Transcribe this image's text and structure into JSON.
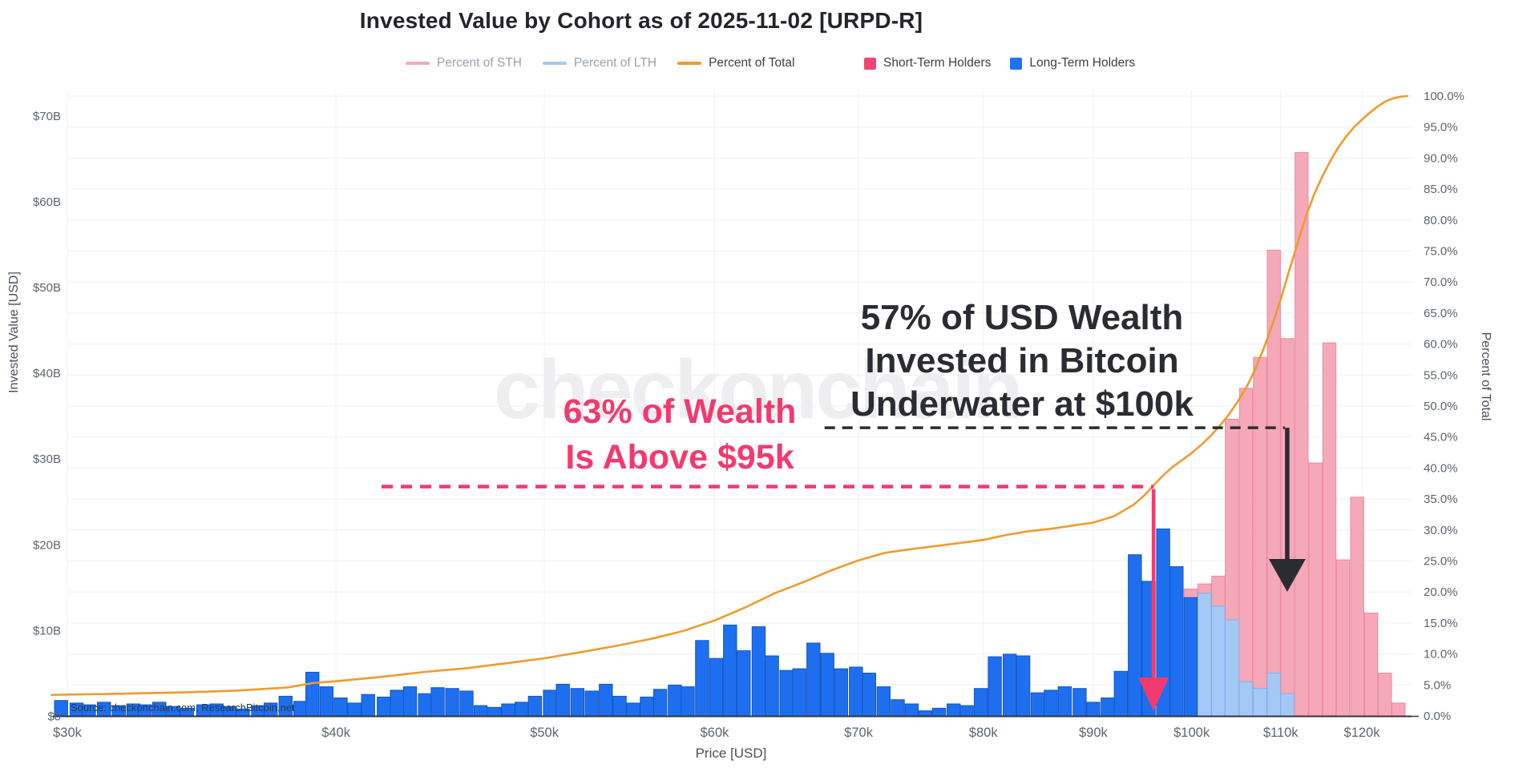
{
  "title": "Invested Value by Cohort as of 2025-11-02 [URPD-R]",
  "legend": {
    "lines": [
      {
        "label": "Percent of STH",
        "color": "#f2a9bb",
        "muted": true
      },
      {
        "label": "Percent of LTH",
        "color": "#a9c9f3",
        "muted": true
      },
      {
        "label": "Percent of Total",
        "color": "#ef9b2d",
        "muted": false
      }
    ],
    "bars": [
      {
        "label": "Short-Term Holders",
        "color": "#f0476e"
      },
      {
        "label": "Long-Term Holders",
        "color": "#1e72f0"
      }
    ]
  },
  "axes": {
    "left": {
      "title": "Invested Value [USD]",
      "ticks": [
        {
          "label": "$70B",
          "value": 70
        },
        {
          "label": "$60B",
          "value": 60
        },
        {
          "label": "$50B",
          "value": 50
        },
        {
          "label": "$40B",
          "value": 40
        },
        {
          "label": "$30B",
          "value": 30
        },
        {
          "label": "$20B",
          "value": 20
        },
        {
          "label": "$10B",
          "value": 10
        },
        {
          "label": "$0",
          "value": 0
        }
      ]
    },
    "right": {
      "title": "Percent of Total",
      "ticks": [
        {
          "label": "100.0%",
          "value": 100
        },
        {
          "label": "95.0%",
          "value": 95
        },
        {
          "label": "90.0%",
          "value": 90
        },
        {
          "label": "85.0%",
          "value": 85
        },
        {
          "label": "80.0%",
          "value": 80
        },
        {
          "label": "75.0%",
          "value": 75
        },
        {
          "label": "70.0%",
          "value": 70
        },
        {
          "label": "65.0%",
          "value": 65
        },
        {
          "label": "60.0%",
          "value": 60
        },
        {
          "label": "55.0%",
          "value": 55
        },
        {
          "label": "50.0%",
          "value": 50
        },
        {
          "label": "45.0%",
          "value": 45
        },
        {
          "label": "40.0%",
          "value": 40
        },
        {
          "label": "35.0%",
          "value": 35
        },
        {
          "label": "30.0%",
          "value": 30
        },
        {
          "label": "25.0%",
          "value": 25
        },
        {
          "label": "20.0%",
          "value": 20
        },
        {
          "label": "15.0%",
          "value": 15
        },
        {
          "label": "10.0%",
          "value": 10
        },
        {
          "label": "5.0%",
          "value": 5
        },
        {
          "label": "0.0%",
          "value": 0
        }
      ]
    },
    "x": {
      "title": "Price [USD]",
      "ticks": [
        {
          "label": "$30k",
          "value": 30
        },
        {
          "label": "$40k",
          "value": 40
        },
        {
          "label": "$50k",
          "value": 50
        },
        {
          "label": "$60k",
          "value": 60
        },
        {
          "label": "$70k",
          "value": 70
        },
        {
          "label": "$80k",
          "value": 80
        },
        {
          "label": "$90k",
          "value": 90
        },
        {
          "label": "$100k",
          "value": 100
        },
        {
          "label": "$110k",
          "value": 110
        },
        {
          "label": "$120k",
          "value": 120
        }
      ]
    }
  },
  "annotations": {
    "pink": {
      "line1": "63% of Wealth",
      "line2": "Is Above $95k",
      "color": "#f23a6e",
      "level_pct": 37,
      "dash_from_k": 42,
      "arrow_price_k": 96
    },
    "black": {
      "line1": "57% of USD Wealth",
      "line2": "Invested in Bitcoin",
      "line3": "Underwater at $100k",
      "color": "#2b2c32",
      "level_pct": 46.5,
      "dash_from_k": 67.5,
      "arrow_price_k": 110.5
    }
  },
  "watermark": "checkonchain",
  "source": "Source: checkonchain.com, ResearchBitcoin.net",
  "chart_data": {
    "type": "bar+line",
    "x_scale": "log",
    "title": "Invested Value by Cohort as of 2025-11-02 [URPD-R]",
    "xlabel": "Price [USD]",
    "ylabel_left": "Invested Value [USD]",
    "ylabel_right": "Percent of Total",
    "y_left_range_billion": [
      0,
      70
    ],
    "y_right_range_pct": [
      0,
      100
    ],
    "x_range_k": [
      29.5,
      126.5
    ],
    "prices_k": [
      29.8,
      30.3,
      30.7,
      31.2,
      31.7,
      32.2,
      32.6,
      33.1,
      33.6,
      34.1,
      34.7,
      35.2,
      35.7,
      36.2,
      36.8,
      37.3,
      37.9,
      38.5,
      39.0,
      39.6,
      40.2,
      40.8,
      41.4,
      42.1,
      42.7,
      43.3,
      44.0,
      44.6,
      45.3,
      46.0,
      46.7,
      47.4,
      48.1,
      48.8,
      49.5,
      50.3,
      51.0,
      51.8,
      52.6,
      53.4,
      54.2,
      55.0,
      55.8,
      56.6,
      57.5,
      58.3,
      59.2,
      60.1,
      61.0,
      61.9,
      62.9,
      63.8,
      64.8,
      65.7,
      66.7,
      67.7,
      68.7,
      69.8,
      70.8,
      71.9,
      73.0,
      74.1,
      75.2,
      76.3,
      77.5,
      78.6,
      79.8,
      81.0,
      82.3,
      83.5,
      84.8,
      86.0,
      87.3,
      88.7,
      90.0,
      91.4,
      92.7,
      94.1,
      95.5,
      97.0,
      98.4,
      99.9,
      101.4,
      102.9,
      104.4,
      106.0,
      107.6,
      109.2,
      110.8,
      112.5,
      114.2,
      115.9,
      117.6,
      119.4,
      121.2,
      123.0,
      124.8
    ],
    "lth_billion": [
      1.8,
      1.5,
      1.3,
      1.6,
      1.2,
      1.4,
      1.3,
      1.6,
      1.1,
      0.9,
      1.3,
      1.4,
      1.1,
      0.8,
      1.2,
      1.5,
      2.3,
      1.7,
      5.1,
      3.4,
      2.1,
      1.5,
      2.5,
      2.2,
      3.0,
      3.4,
      2.6,
      3.3,
      3.2,
      2.9,
      1.2,
      1.0,
      1.4,
      1.6,
      2.3,
      3.0,
      3.7,
      3.2,
      2.9,
      3.7,
      2.3,
      1.5,
      2.2,
      3.1,
      3.6,
      3.4,
      8.8,
      6.7,
      10.6,
      7.6,
      10.4,
      7.0,
      5.3,
      5.5,
      8.5,
      7.3,
      5.5,
      5.7,
      5.0,
      3.4,
      1.9,
      1.4,
      0.6,
      0.9,
      1.4,
      1.2,
      3.2,
      6.9,
      7.2,
      7.0,
      2.7,
      3.0,
      3.4,
      3.2,
      1.6,
      2.1,
      5.2,
      18.8,
      15.7,
      21.8,
      17.4,
      13.8,
      14.3,
      12.8,
      11.2,
      4.0,
      3.2,
      5.0,
      2.6,
      0,
      0,
      0,
      0,
      0,
      0,
      0,
      0
    ],
    "sth_billion": [
      0,
      0,
      0,
      0,
      0,
      0,
      0,
      0,
      0,
      0,
      0,
      0,
      0,
      0,
      0,
      0,
      0,
      0,
      0,
      0,
      0,
      0,
      0,
      0,
      0,
      0,
      0,
      0,
      0,
      0,
      0,
      0,
      0,
      0,
      0,
      0,
      0,
      0,
      0,
      0,
      0,
      0,
      0,
      0,
      0,
      0,
      0,
      0,
      0,
      0,
      0,
      0,
      0,
      0,
      0,
      0,
      0,
      0,
      0,
      0,
      0,
      0,
      0,
      0,
      0,
      0,
      0,
      0,
      0,
      0,
      0,
      0,
      0,
      0,
      0,
      0,
      0,
      0,
      0,
      0,
      0,
      14.8,
      15.4,
      16.3,
      34.6,
      38.2,
      41.8,
      54.3,
      44.0,
      65.7,
      29.5,
      43.5,
      18.2,
      25.5,
      12.0,
      5.0,
      1.5
    ],
    "percent_of_total_line": [
      [
        29.5,
        3.4
      ],
      [
        32,
        3.6
      ],
      [
        34,
        3.8
      ],
      [
        36,
        4.1
      ],
      [
        38,
        4.6
      ],
      [
        39,
        5.3
      ],
      [
        40,
        5.6
      ],
      [
        42,
        6.3
      ],
      [
        44,
        7.1
      ],
      [
        46,
        7.7
      ],
      [
        48,
        8.5
      ],
      [
        50,
        9.3
      ],
      [
        52,
        10.3
      ],
      [
        54,
        11.3
      ],
      [
        56,
        12.4
      ],
      [
        58,
        13.7
      ],
      [
        60,
        15.4
      ],
      [
        62,
        17.5
      ],
      [
        64,
        19.8
      ],
      [
        66,
        21.6
      ],
      [
        68,
        23.5
      ],
      [
        70,
        25.1
      ],
      [
        72,
        26.3
      ],
      [
        74,
        26.9
      ],
      [
        76,
        27.4
      ],
      [
        78,
        27.9
      ],
      [
        80,
        28.4
      ],
      [
        82,
        29.2
      ],
      [
        84,
        29.8
      ],
      [
        86,
        30.2
      ],
      [
        88,
        30.7
      ],
      [
        90,
        31.2
      ],
      [
        92,
        32.2
      ],
      [
        94,
        34.1
      ],
      [
        95,
        35.5
      ],
      [
        96,
        37.2
      ],
      [
        97,
        38.8
      ],
      [
        98,
        40.2
      ],
      [
        99,
        41.3
      ],
      [
        100,
        42.4
      ],
      [
        101,
        43.7
      ],
      [
        102,
        45.1
      ],
      [
        103,
        46.7
      ],
      [
        104,
        48.5
      ],
      [
        105,
        50.6
      ],
      [
        106,
        52.9
      ],
      [
        107,
        55.8
      ],
      [
        108,
        59.2
      ],
      [
        109,
        63.0
      ],
      [
        110,
        67.2
      ],
      [
        111,
        71.8
      ],
      [
        112,
        76.2
      ],
      [
        113,
        80.5
      ],
      [
        114,
        84.1
      ],
      [
        115,
        87.0
      ],
      [
        116,
        89.5
      ],
      [
        117,
        91.7
      ],
      [
        118,
        93.5
      ],
      [
        119,
        95.0
      ],
      [
        120,
        96.2
      ],
      [
        121,
        97.3
      ],
      [
        122,
        98.3
      ],
      [
        123,
        99.1
      ],
      [
        124,
        99.6
      ],
      [
        125,
        99.9
      ],
      [
        126,
        100
      ]
    ],
    "overlap_light_above_k": 100.5,
    "colors": {
      "sth_fill": "#f5a8b8",
      "sth_edge": "#ec8aa0",
      "lth_fill": "#1e6ff0",
      "lth_edge": "#1356c2",
      "lth_overlap_fill": "#a5c9f7",
      "lth_overlap_edge": "#82b1ec",
      "total_line": "#ef9b2d",
      "grid": "#f0f0f4",
      "axis_line": "#33343a",
      "tick_text": "#5d646e"
    }
  }
}
